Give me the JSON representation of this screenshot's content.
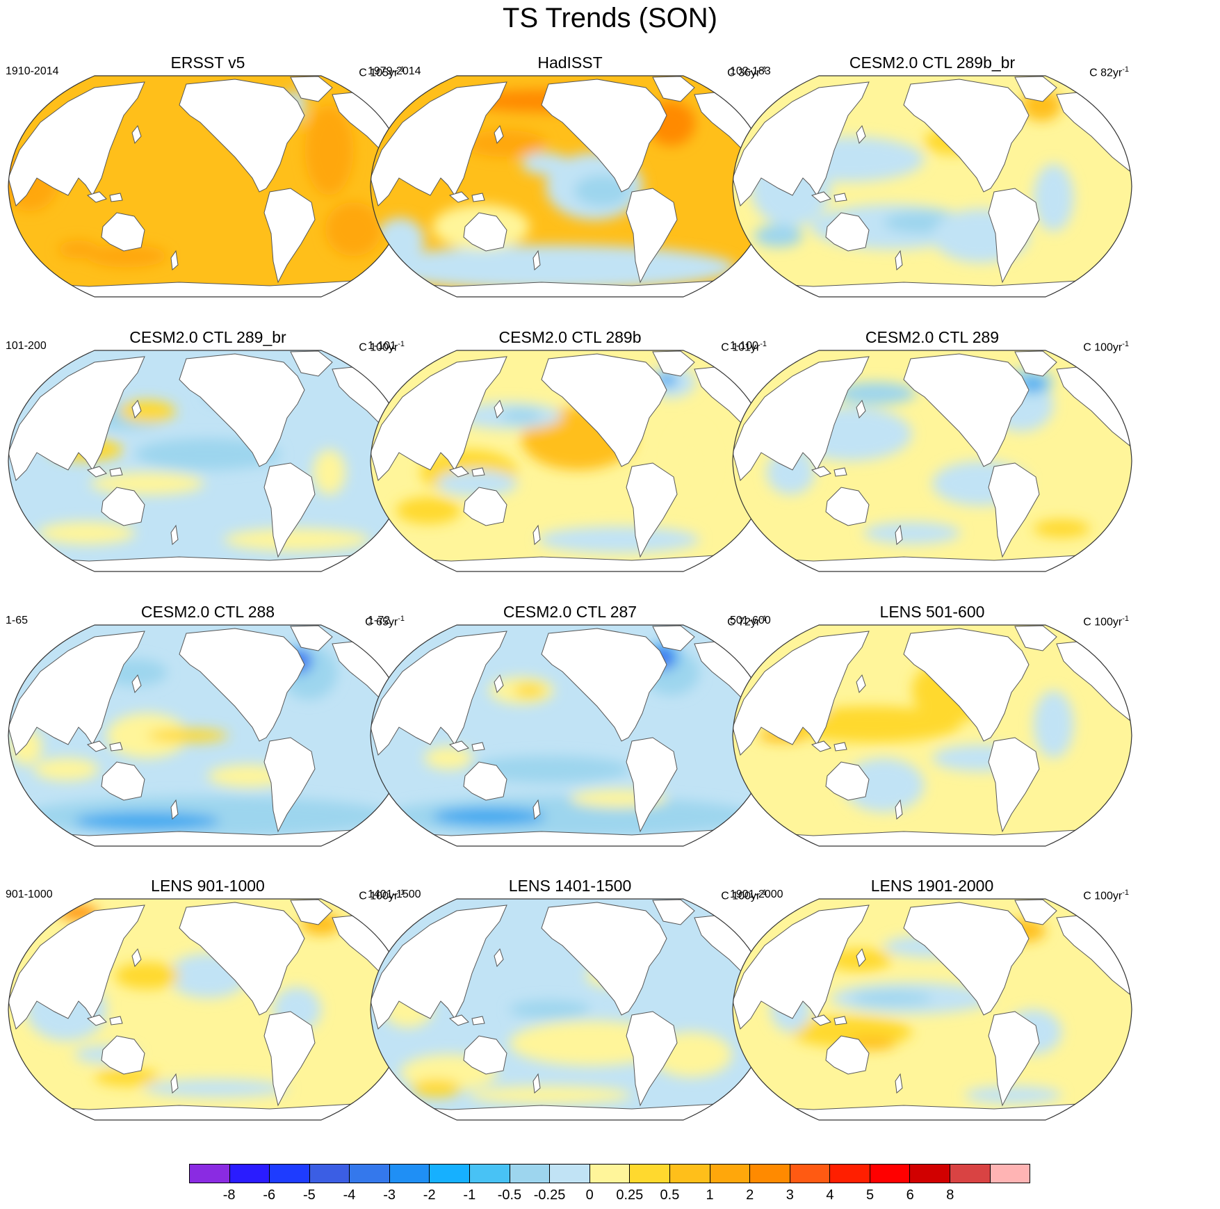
{
  "title": "TS Trends (SON)",
  "panels": [
    {
      "title": "ERSST v5",
      "period": "1910-2014",
      "units_prefix": "C 105yr",
      "units_exp": "-1",
      "bg": "#ffbf1a",
      "blobs": [
        [
          "#ffa70b",
          0.06,
          0.48,
          0.07,
          0.13
        ],
        [
          "#ffa70b",
          0.8,
          0.34,
          0.06,
          0.2
        ],
        [
          "#ffa70b",
          0.86,
          0.69,
          0.07,
          0.12
        ],
        [
          "#ffa70b",
          0.3,
          0.81,
          0.1,
          0.05
        ],
        [
          "#ffa70b",
          0.18,
          0.78,
          0.05,
          0.04
        ],
        [
          "#c1e3f5",
          0.72,
          0.14,
          0.02,
          0.07
        ],
        [
          "#9dd5ee",
          0.69,
          0.13,
          0.015,
          0.04
        ]
      ]
    },
    {
      "title": "HadISST",
      "period": "1979-2014",
      "units_prefix": "C 36yr",
      "units_exp": "-1",
      "bg": "#ffbf1a",
      "blobs": [
        [
          "#c1e3f5",
          0.46,
          0.86,
          0.45,
          0.1
        ],
        [
          "#c1e3f5",
          0.56,
          0.5,
          0.12,
          0.15
        ],
        [
          "#9dd5ee",
          0.58,
          0.52,
          0.07,
          0.07
        ],
        [
          "#c1e3f5",
          0.08,
          0.74,
          0.06,
          0.1
        ],
        [
          "#fff59a",
          0.28,
          0.68,
          0.12,
          0.1
        ],
        [
          "#ffa70b",
          0.34,
          0.31,
          0.1,
          0.06
        ],
        [
          "#ff8a00",
          0.75,
          0.22,
          0.06,
          0.1
        ],
        [
          "#ff8a00",
          0.44,
          0.12,
          0.2,
          0.05
        ],
        [
          "#c1e3f5",
          0.44,
          0.4,
          0.06,
          0.05
        ]
      ]
    },
    {
      "title": "CESM2.0 CTL 289b_br",
      "period": "102-183",
      "units_prefix": "C 82yr",
      "units_exp": "-1",
      "bg": "#fff59a",
      "blobs": [
        [
          "#c1e3f5",
          0.3,
          0.38,
          0.18,
          0.1
        ],
        [
          "#c1e3f5",
          0.4,
          0.68,
          0.2,
          0.1
        ],
        [
          "#9dd5ee",
          0.48,
          0.66,
          0.1,
          0.05
        ],
        [
          "#c1e3f5",
          0.15,
          0.5,
          0.1,
          0.18
        ],
        [
          "#9dd5ee",
          0.12,
          0.72,
          0.06,
          0.05
        ],
        [
          "#c1e3f5",
          0.62,
          0.72,
          0.12,
          0.12
        ],
        [
          "#c1e3f5",
          0.8,
          0.55,
          0.05,
          0.15
        ],
        [
          "#ffbf1a",
          0.77,
          0.14,
          0.05,
          0.07
        ],
        [
          "#ffd92e",
          0.55,
          0.3,
          0.07,
          0.06
        ]
      ]
    },
    {
      "title": "CESM2.0 CTL 289_br",
      "period": "101-200",
      "units_prefix": "C 100yr",
      "units_exp": "-1",
      "bg": "#c1e3f5",
      "blobs": [
        [
          "#9dd5ee",
          0.5,
          0.47,
          0.18,
          0.07
        ],
        [
          "#9dd5ee",
          0.3,
          0.3,
          0.1,
          0.06
        ],
        [
          "#9dd5ee",
          0.58,
          0.2,
          0.09,
          0.06
        ],
        [
          "#ffd92e",
          0.2,
          0.45,
          0.09,
          0.05
        ],
        [
          "#fff59a",
          0.35,
          0.6,
          0.14,
          0.05
        ],
        [
          "#fff59a",
          0.72,
          0.85,
          0.18,
          0.05
        ],
        [
          "#fff59a",
          0.2,
          0.82,
          0.12,
          0.05
        ],
        [
          "#ffd92e",
          0.35,
          0.28,
          0.07,
          0.05
        ],
        [
          "#fff59a",
          0.8,
          0.55,
          0.04,
          0.1
        ]
      ]
    },
    {
      "title": "CESM2.0 CTL 289b",
      "period": "1-101",
      "units_prefix": "C 101yr",
      "units_exp": "-1",
      "bg": "#fff59a",
      "blobs": [
        [
          "#ffbf1a",
          0.52,
          0.4,
          0.14,
          0.14
        ],
        [
          "#ffd92e",
          0.25,
          0.55,
          0.12,
          0.1
        ],
        [
          "#c1e3f5",
          0.27,
          0.6,
          0.1,
          0.06
        ],
        [
          "#c1e3f5",
          0.35,
          0.3,
          0.13,
          0.06
        ],
        [
          "#9dd5ee",
          0.38,
          0.3,
          0.05,
          0.03
        ],
        [
          "#c1e3f5",
          0.62,
          0.85,
          0.2,
          0.06
        ],
        [
          "#ffd92e",
          0.15,
          0.72,
          0.08,
          0.06
        ],
        [
          "#fff59a",
          0.8,
          0.5,
          0.05,
          0.15
        ],
        [
          "#c1e3f5",
          0.75,
          0.15,
          0.06,
          0.07
        ],
        [
          "#3fa8f0",
          0.74,
          0.14,
          0.025,
          0.03
        ]
      ]
    },
    {
      "title": "CESM2.0 CTL 289",
      "period": "1-100",
      "units_prefix": "C 100yr",
      "units_exp": "-1",
      "bg": "#fff59a",
      "blobs": [
        [
          "#c1e3f5",
          0.3,
          0.38,
          0.15,
          0.12
        ],
        [
          "#9dd5ee",
          0.36,
          0.2,
          0.1,
          0.05
        ],
        [
          "#c1e3f5",
          0.62,
          0.6,
          0.12,
          0.1
        ],
        [
          "#c1e3f5",
          0.15,
          0.55,
          0.06,
          0.1
        ],
        [
          "#c1e3f5",
          0.45,
          0.82,
          0.12,
          0.05
        ],
        [
          "#c1e3f5",
          0.72,
          0.25,
          0.08,
          0.12
        ],
        [
          "#9dd5ee",
          0.74,
          0.15,
          0.06,
          0.06
        ],
        [
          "#3fa8f0",
          0.75,
          0.16,
          0.03,
          0.03
        ],
        [
          "#ffd92e",
          0.82,
          0.8,
          0.07,
          0.04
        ]
      ]
    },
    {
      "title": "CESM2.0 CTL 288",
      "period": "1-65",
      "units_prefix": "C 65yr",
      "units_exp": "-1",
      "bg": "#c1e3f5",
      "blobs": [
        [
          "#9dd5ee",
          0.5,
          0.86,
          0.46,
          0.09
        ],
        [
          "#3fa8f0",
          0.35,
          0.88,
          0.18,
          0.04
        ],
        [
          "#fff59a",
          0.35,
          0.5,
          0.1,
          0.1
        ],
        [
          "#ffd92e",
          0.45,
          0.5,
          0.1,
          0.03
        ],
        [
          "#fff59a",
          0.05,
          0.55,
          0.04,
          0.08
        ],
        [
          "#fff59a",
          0.15,
          0.65,
          0.08,
          0.05
        ],
        [
          "#9dd5ee",
          0.32,
          0.22,
          0.08,
          0.06
        ],
        [
          "#9dd5ee",
          0.75,
          0.22,
          0.07,
          0.12
        ],
        [
          "#3fa8f0",
          0.72,
          0.17,
          0.04,
          0.06
        ],
        [
          "#4460f0",
          0.73,
          0.17,
          0.02,
          0.04
        ],
        [
          "#fff59a",
          0.6,
          0.68,
          0.1,
          0.05
        ]
      ]
    },
    {
      "title": "CESM2.0 CTL 287",
      "period": "1-72",
      "units_prefix": "C 72yr",
      "units_exp": "-1",
      "bg": "#c1e3f5",
      "blobs": [
        [
          "#9dd5ee",
          0.5,
          0.86,
          0.46,
          0.09
        ],
        [
          "#3fa8f0",
          0.3,
          0.86,
          0.14,
          0.04
        ],
        [
          "#9dd5ee",
          0.45,
          0.65,
          0.2,
          0.06
        ],
        [
          "#fff59a",
          0.38,
          0.3,
          0.08,
          0.06
        ],
        [
          "#ffd92e",
          0.4,
          0.3,
          0.04,
          0.03
        ],
        [
          "#fff59a",
          0.62,
          0.78,
          0.12,
          0.04
        ],
        [
          "#9dd5ee",
          0.75,
          0.22,
          0.07,
          0.1
        ],
        [
          "#3fa8f0",
          0.73,
          0.15,
          0.04,
          0.06
        ],
        [
          "#4460f0",
          0.73,
          0.16,
          0.02,
          0.04
        ],
        [
          "#fff59a",
          0.2,
          0.6,
          0.06,
          0.05
        ]
      ]
    },
    {
      "title": "LENS 501-600",
      "period": "501-600",
      "units_prefix": "C 100yr",
      "units_exp": "-1",
      "bg": "#fff59a",
      "blobs": [
        [
          "#ffd92e",
          0.35,
          0.45,
          0.22,
          0.08
        ],
        [
          "#ffbf1a",
          0.13,
          0.5,
          0.06,
          0.03
        ],
        [
          "#ffd92e",
          0.55,
          0.3,
          0.1,
          0.14
        ],
        [
          "#c1e3f5",
          0.38,
          0.72,
          0.1,
          0.12
        ],
        [
          "#c1e3f5",
          0.62,
          0.6,
          0.12,
          0.06
        ],
        [
          "#c1e3f5",
          0.8,
          0.45,
          0.05,
          0.15
        ],
        [
          "#c1e3f5",
          0.2,
          0.38,
          0.04,
          0.04
        ],
        [
          "#c1e3f5",
          0.6,
          0.15,
          0.1,
          0.04
        ]
      ]
    },
    {
      "title": "LENS 901-1000",
      "period": "901-1000",
      "units_prefix": "C 100yr",
      "units_exp": "-1",
      "bg": "#fff59a",
      "blobs": [
        [
          "#c1e3f5",
          0.15,
          0.5,
          0.1,
          0.14
        ],
        [
          "#c1e3f5",
          0.5,
          0.35,
          0.1,
          0.1
        ],
        [
          "#c1e3f5",
          0.52,
          0.85,
          0.18,
          0.04
        ],
        [
          "#c1e3f5",
          0.72,
          0.5,
          0.06,
          0.1
        ],
        [
          "#c1e3f5",
          0.25,
          0.7,
          0.08,
          0.04
        ],
        [
          "#ffd92e",
          0.35,
          0.35,
          0.08,
          0.06
        ],
        [
          "#ffbf1a",
          0.78,
          0.12,
          0.05,
          0.05
        ],
        [
          "#ff8a00",
          0.18,
          0.07,
          0.05,
          0.03
        ],
        [
          "#ffd92e",
          0.3,
          0.8,
          0.08,
          0.04
        ]
      ]
    },
    {
      "title": "LENS 1401-1500",
      "period": "1401-1500",
      "units_prefix": "C 100yr",
      "units_exp": "-1",
      "bg": "#c1e3f5",
      "blobs": [
        [
          "#fff59a",
          0.55,
          0.65,
          0.2,
          0.1
        ],
        [
          "#fff59a",
          0.2,
          0.78,
          0.12,
          0.08
        ],
        [
          "#fff59a",
          0.1,
          0.5,
          0.06,
          0.08
        ],
        [
          "#fff59a",
          0.8,
          0.7,
          0.1,
          0.1
        ],
        [
          "#fff59a",
          0.6,
          0.35,
          0.06,
          0.05
        ],
        [
          "#fff59a",
          0.45,
          0.88,
          0.2,
          0.04
        ],
        [
          "#ffd92e",
          0.17,
          0.85,
          0.06,
          0.04
        ],
        [
          "#9dd5ee",
          0.45,
          0.5,
          0.1,
          0.04
        ]
      ]
    },
    {
      "title": "LENS 1901-2000",
      "period": "1901-2000",
      "units_prefix": "C 100yr",
      "units_exp": "-1",
      "bg": "#fff59a",
      "blobs": [
        [
          "#c1e3f5",
          0.45,
          0.45,
          0.2,
          0.07
        ],
        [
          "#9dd5ee",
          0.4,
          0.45,
          0.1,
          0.03
        ],
        [
          "#c1e3f5",
          0.5,
          0.22,
          0.12,
          0.05
        ],
        [
          "#ffd92e",
          0.3,
          0.6,
          0.15,
          0.07
        ],
        [
          "#ffbf1a",
          0.35,
          0.65,
          0.06,
          0.03
        ],
        [
          "#ffd92e",
          0.32,
          0.28,
          0.08,
          0.05
        ],
        [
          "#c1e3f5",
          0.75,
          0.6,
          0.07,
          0.1
        ],
        [
          "#c1e3f5",
          0.7,
          0.88,
          0.12,
          0.04
        ],
        [
          "#ffbf1a",
          0.73,
          0.15,
          0.05,
          0.05
        ],
        [
          "#c1e3f5",
          0.15,
          0.5,
          0.05,
          0.1
        ]
      ]
    }
  ],
  "colorbar": {
    "colors": [
      "#8a2be2",
      "#2a1cff",
      "#1e3cff",
      "#3b5ee4",
      "#3478ec",
      "#1f8ff5",
      "#16b0ff",
      "#48c2f5",
      "#9dd5ee",
      "#c1e3f5",
      "#fff59a",
      "#ffd92e",
      "#ffbf1a",
      "#ffa70b",
      "#ff8a00",
      "#ff5a12",
      "#ff1f00",
      "#ff0000",
      "#d10000",
      "#d94343",
      "#ffb4b4"
    ],
    "labels": [
      "-8",
      "-6",
      "-5",
      "-4",
      "-3",
      "-2",
      "-1",
      "-0.5",
      "-0.25",
      "0",
      "0.25",
      "0.5",
      "1",
      "2",
      "3",
      "4",
      "5",
      "6",
      "8"
    ]
  }
}
